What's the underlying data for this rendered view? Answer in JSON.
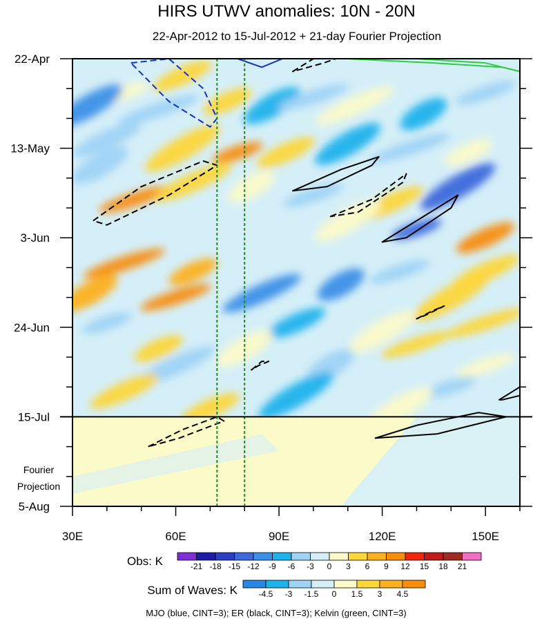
{
  "chart_data": {
    "type": "heatmap",
    "title": "HIRS UTWV anomalies: 10N - 20N",
    "subtitle": "22-Apr-2012 to 15-Jul-2012 + 21-day Fourier Projection",
    "xlabel": "",
    "ylabel": "",
    "x_ticks": [
      "30E",
      "60E",
      "90E",
      "120E",
      "150E"
    ],
    "x_tick_values": [
      30,
      60,
      90,
      120,
      150
    ],
    "xlim": [
      30,
      160
    ],
    "y_ticks": [
      "22-Apr",
      "13-May",
      "3-Jun",
      "24-Jun",
      "15-Jul",
      "5-Aug"
    ],
    "y_tick_days": [
      0,
      21,
      42,
      63,
      84,
      105
    ],
    "ylim_days": [
      0,
      105
    ],
    "observation_end_day": 84,
    "projection_label": [
      "Fourier",
      "Projection"
    ],
    "reference_lines_lon": [
      72,
      80
    ],
    "obs_colorbar": {
      "title": "Obs: K",
      "labels": [
        "-21",
        "-18",
        "-15",
        "-12",
        "-9",
        "-6",
        "-3",
        "0",
        "3",
        "6",
        "9",
        "12",
        "15",
        "18",
        "21"
      ],
      "colors": [
        "#7e2fd6",
        "#1c1aa8",
        "#2a3fc4",
        "#3b68db",
        "#3b8fe8",
        "#1fb2ec",
        "#9ed3f5",
        "#d4eef8",
        "#fbfac9",
        "#fdd63a",
        "#fdb11f",
        "#f88d09",
        "#f4230c",
        "#c21b17",
        "#9e2a22",
        "#f06ec4"
      ]
    },
    "waves_colorbar": {
      "title": "Sum of Waves: K",
      "labels": [
        "-4.5",
        "-3",
        "-1.5",
        "0",
        "1.5",
        "3",
        "4.5"
      ],
      "colors": [
        "#2a86e3",
        "#1eb1ec",
        "#9ed3f5",
        "#d5eff8",
        "#fbfac9",
        "#fdd63a",
        "#fdb11f",
        "#f88d09"
      ]
    },
    "footnote": "MJO (blue, CINT=3); ER (black, CINT=3); Kelvin (green, CINT=3)",
    "contours": [
      {
        "wave": "MJO",
        "color": "#1230c8",
        "sign": "negative",
        "lon": [
          47,
          58,
          68,
          72,
          70,
          58,
          47
        ],
        "day": [
          1,
          0,
          7,
          14,
          16,
          10,
          1
        ]
      },
      {
        "wave": "MJO",
        "color": "#1230c8",
        "sign": "positive",
        "lon": [
          78,
          85,
          91,
          85,
          78
        ],
        "day": [
          0,
          0,
          0,
          2,
          0
        ]
      },
      {
        "wave": "ER",
        "color": "#000000",
        "sign": "negative",
        "lon": [
          36,
          50,
          68,
          72,
          58,
          40,
          36
        ],
        "day": [
          38,
          30,
          24,
          25,
          32,
          39,
          38
        ]
      },
      {
        "wave": "ER",
        "color": "#000000",
        "sign": "negative",
        "lon": [
          94,
          100,
          110,
          103,
          94
        ],
        "day": [
          3,
          0,
          -1,
          1,
          3
        ]
      },
      {
        "wave": "ER",
        "color": "#000000",
        "sign": "positive",
        "lon": [
          94,
          108,
          119,
          117,
          104,
          94
        ],
        "day": [
          31,
          26,
          23,
          25,
          30,
          31
        ]
      },
      {
        "wave": "ER",
        "color": "#000000",
        "sign": "negative",
        "lon": [
          105,
          117,
          127,
          126,
          113,
          105
        ],
        "day": [
          37,
          33,
          27,
          29,
          36,
          37
        ]
      },
      {
        "wave": "ER",
        "color": "#000000",
        "sign": "positive",
        "lon": [
          120,
          132,
          142,
          140,
          127,
          120
        ],
        "day": [
          43,
          37,
          32,
          35,
          42,
          43
        ]
      },
      {
        "wave": "ER",
        "color": "#000000",
        "sign": "negative",
        "lon": [
          130,
          135,
          138,
          133,
          130
        ],
        "day": [
          61,
          59,
          58,
          60,
          61
        ]
      },
      {
        "wave": "ER",
        "color": "#000000",
        "sign": "negative",
        "lon": [
          82,
          85,
          87,
          84,
          82
        ],
        "day": [
          73,
          71,
          71,
          72,
          73
        ]
      },
      {
        "wave": "ER",
        "color": "#000000",
        "sign": "positive",
        "lon": [
          154,
          160,
          160,
          155,
          154
        ],
        "day": [
          80,
          77,
          79,
          80,
          80
        ]
      },
      {
        "wave": "ER",
        "color": "#000000",
        "sign": "negative",
        "lon": [
          52,
          62,
          72,
          74,
          61,
          52
        ],
        "day": [
          91,
          87,
          84,
          85,
          89,
          91
        ]
      },
      {
        "wave": "ER",
        "color": "#000000",
        "sign": "positive",
        "lon": [
          118,
          130,
          148,
          156,
          136,
          118
        ],
        "day": [
          89,
          86,
          83,
          84,
          88,
          89
        ]
      },
      {
        "wave": "Kelvin",
        "color": "#2ecc40",
        "sign": "positive",
        "lon": [
          108,
          130,
          150,
          160
        ],
        "day": [
          0,
          0,
          1,
          3
        ]
      },
      {
        "wave": "Kelvin",
        "color": "#2ecc40",
        "sign": "positive",
        "lon": [
          110,
          135,
          155,
          160
        ],
        "day": [
          0,
          1,
          2,
          3
        ]
      }
    ],
    "anomaly_blobs": [
      {
        "lon": 45,
        "day": 8,
        "value": 2
      },
      {
        "lon": 62,
        "day": 4,
        "value": 3
      },
      {
        "lon": 35,
        "day": 11,
        "value": -4
      },
      {
        "lon": 55,
        "day": 12,
        "value": -2
      },
      {
        "lon": 75,
        "day": 10,
        "value": 3
      },
      {
        "lon": 88,
        "day": 11,
        "value": -3
      },
      {
        "lon": 100,
        "day": 9,
        "value": -2
      },
      {
        "lon": 112,
        "day": 11,
        "value": 2
      },
      {
        "lon": 132,
        "day": 13,
        "value": -3
      },
      {
        "lon": 150,
        "day": 8,
        "value": -2
      },
      {
        "lon": 40,
        "day": 19,
        "value": -2
      },
      {
        "lon": 62,
        "day": 21,
        "value": 3
      },
      {
        "lon": 78,
        "day": 22,
        "value": 5
      },
      {
        "lon": 92,
        "day": 22,
        "value": 3
      },
      {
        "lon": 110,
        "day": 20,
        "value": -3
      },
      {
        "lon": 128,
        "day": 21,
        "value": -2
      },
      {
        "lon": 145,
        "day": 22,
        "value": 2
      },
      {
        "lon": 38,
        "day": 25,
        "value": -2
      },
      {
        "lon": 48,
        "day": 33,
        "value": 5
      },
      {
        "lon": 65,
        "day": 29,
        "value": 3
      },
      {
        "lon": 82,
        "day": 30,
        "value": 2
      },
      {
        "lon": 100,
        "day": 32,
        "value": -2
      },
      {
        "lon": 122,
        "day": 34,
        "value": 3
      },
      {
        "lon": 142,
        "day": 30,
        "value": -5
      },
      {
        "lon": 130,
        "day": 40,
        "value": -5
      },
      {
        "lon": 150,
        "day": 42,
        "value": 5
      },
      {
        "lon": 110,
        "day": 38,
        "value": 2
      },
      {
        "lon": 45,
        "day": 48,
        "value": 5
      },
      {
        "lon": 65,
        "day": 50,
        "value": 4
      },
      {
        "lon": 35,
        "day": 55,
        "value": 4
      },
      {
        "lon": 60,
        "day": 56,
        "value": 5
      },
      {
        "lon": 85,
        "day": 55,
        "value": -4
      },
      {
        "lon": 108,
        "day": 53,
        "value": -4
      },
      {
        "lon": 125,
        "day": 50,
        "value": -2
      },
      {
        "lon": 150,
        "day": 50,
        "value": 3
      },
      {
        "lon": 140,
        "day": 56,
        "value": 3
      },
      {
        "lon": 40,
        "day": 62,
        "value": -2
      },
      {
        "lon": 95,
        "day": 62,
        "value": -3
      },
      {
        "lon": 120,
        "day": 64,
        "value": 2
      },
      {
        "lon": 150,
        "day": 62,
        "value": 3
      },
      {
        "lon": 55,
        "day": 68,
        "value": 3
      },
      {
        "lon": 80,
        "day": 68,
        "value": 2
      },
      {
        "lon": 130,
        "day": 67,
        "value": 3
      },
      {
        "lon": 60,
        "day": 72,
        "value": -2
      },
      {
        "lon": 105,
        "day": 72,
        "value": -2
      },
      {
        "lon": 150,
        "day": 72,
        "value": 2
      },
      {
        "lon": 45,
        "day": 78,
        "value": 3
      },
      {
        "lon": 95,
        "day": 79,
        "value": -3
      },
      {
        "lon": 140,
        "day": 77,
        "value": -2
      },
      {
        "lon": 70,
        "day": 82,
        "value": 3
      },
      {
        "lon": 125,
        "day": 82,
        "value": 2
      }
    ]
  }
}
